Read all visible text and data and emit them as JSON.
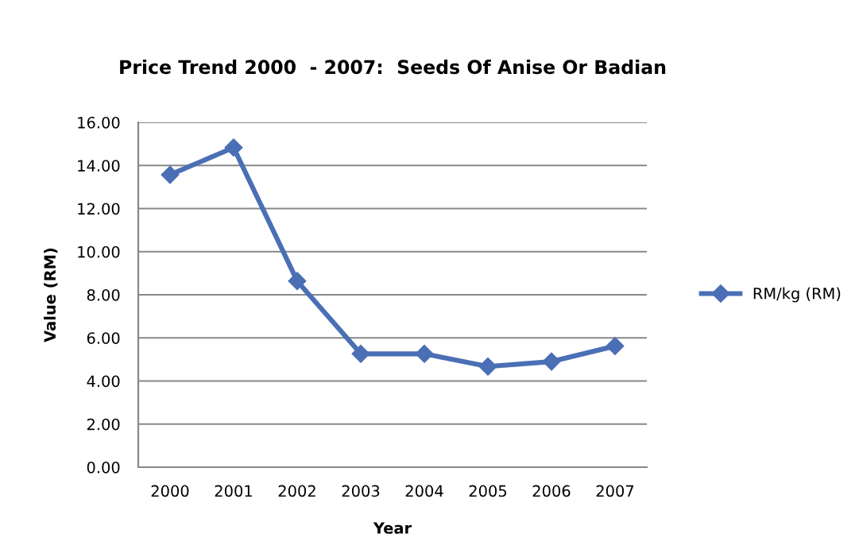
{
  "chart_data": {
    "type": "line",
    "title": "Price Trend 2000  - 2007:  Seeds Of Anise Or Badian",
    "xlabel": "Year",
    "ylabel": "Value (RM)",
    "categories": [
      "2000",
      "2001",
      "2002",
      "2003",
      "2004",
      "2005",
      "2006",
      "2007"
    ],
    "series": [
      {
        "name": "RM/kg (RM)",
        "color": "#4a6fb5",
        "values": [
          13.57,
          14.83,
          8.64,
          5.26,
          5.26,
          4.67,
          4.9,
          5.62
        ]
      }
    ],
    "ylim": [
      0,
      16
    ],
    "yticks": [
      {
        "value": 0,
        "label": "0.00"
      },
      {
        "value": 2,
        "label": "2.00"
      },
      {
        "value": 4,
        "label": "4.00"
      },
      {
        "value": 6,
        "label": "6.00"
      },
      {
        "value": 8,
        "label": "8.00"
      },
      {
        "value": 10,
        "label": "10.00"
      },
      {
        "value": 12,
        "label": "12.00"
      },
      {
        "value": 14,
        "label": "14.00"
      },
      {
        "value": 16,
        "label": "16.00"
      }
    ],
    "grid": "y",
    "legend": "right",
    "marker": "diamond",
    "line_style": "solid"
  }
}
